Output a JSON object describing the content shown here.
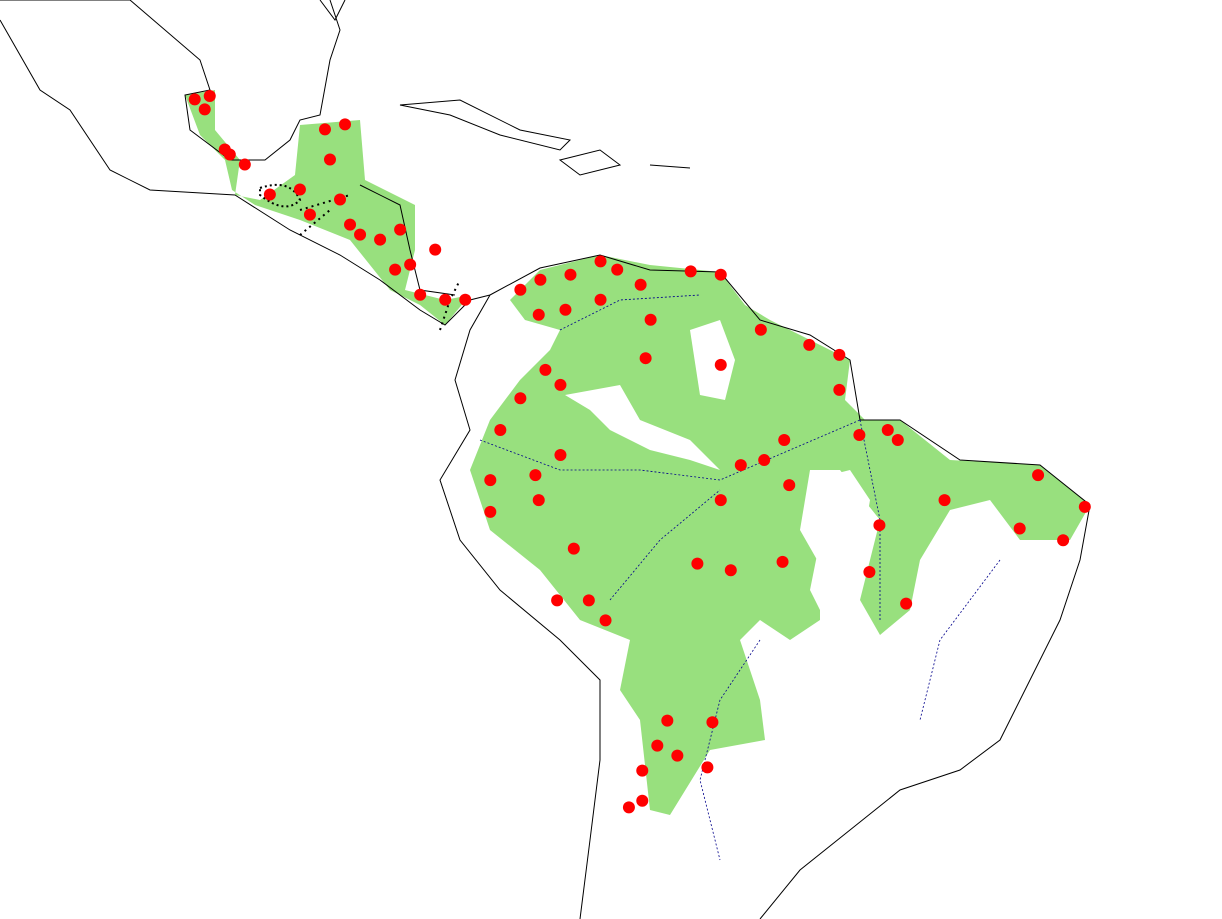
{
  "map": {
    "colors": {
      "background": "#ffffff",
      "coastline": "#000000",
      "rivers": "#00008b",
      "range": "#98e07e",
      "occurrence": "#ff0000",
      "boundary_points": "#000000"
    },
    "occurrences": [
      [
        -88.4,
        19.8
      ],
      [
        -87.8,
        19.2
      ],
      [
        -87.5,
        20.0
      ],
      [
        -86.6,
        16.8
      ],
      [
        -86.3,
        16.5
      ],
      [
        -85.4,
        15.9
      ],
      [
        -80.6,
        18.0
      ],
      [
        -79.4,
        18.3
      ],
      [
        -80.3,
        16.2
      ],
      [
        -82.1,
        14.4
      ],
      [
        -79.7,
        13.8
      ],
      [
        -79.1,
        12.3
      ],
      [
        -77.3,
        11.4
      ],
      [
        -76.1,
        12.0
      ],
      [
        -76.4,
        9.6
      ],
      [
        -74.9,
        8.1
      ],
      [
        -73.4,
        7.8
      ],
      [
        -74.0,
        10.8
      ],
      [
        -83.9,
        14.1
      ],
      [
        -81.5,
        12.9
      ],
      [
        -78.5,
        11.7
      ],
      [
        -75.5,
        9.9
      ],
      [
        -72.2,
        7.8
      ],
      [
        -68.9,
        8.4
      ],
      [
        -67.7,
        9.0
      ],
      [
        -65.9,
        9.3
      ],
      [
        -64.1,
        10.1
      ],
      [
        -61.7,
        8.7
      ],
      [
        -58.7,
        9.5
      ],
      [
        -56.9,
        9.3
      ],
      [
        -63.1,
        9.6
      ],
      [
        -64.1,
        7.8
      ],
      [
        -61.1,
        6.6
      ],
      [
        -66.2,
        7.2
      ],
      [
        -67.8,
        6.9
      ],
      [
        -54.5,
        6.0
      ],
      [
        -51.6,
        5.1
      ],
      [
        -49.8,
        4.5
      ],
      [
        -49.8,
        2.4
      ],
      [
        -56.9,
        3.9
      ],
      [
        -61.4,
        4.3
      ],
      [
        -67.4,
        3.6
      ],
      [
        -66.5,
        2.7
      ],
      [
        -68.9,
        1.9
      ],
      [
        -70.1,
        0.0
      ],
      [
        -70.7,
        -3.0
      ],
      [
        -68.0,
        -2.7
      ],
      [
        -66.5,
        -1.5
      ],
      [
        -67.8,
        -4.2
      ],
      [
        -70.7,
        -4.9
      ],
      [
        -53.1,
        -0.6
      ],
      [
        -54.3,
        -1.8
      ],
      [
        -55.7,
        -2.1
      ],
      [
        -52.8,
        -3.3
      ],
      [
        -56.9,
        -4.2
      ],
      [
        -48.6,
        -0.3
      ],
      [
        -46.9,
        0.0
      ],
      [
        -46.3,
        -0.6
      ],
      [
        -37.9,
        -2.7
      ],
      [
        -43.5,
        -4.2
      ],
      [
        -35.1,
        -4.6
      ],
      [
        -39.0,
        -5.9
      ],
      [
        -36.4,
        -6.6
      ],
      [
        -47.4,
        -5.7
      ],
      [
        -48.0,
        -8.5
      ],
      [
        -45.8,
        -10.4
      ],
      [
        -53.2,
        -7.9
      ],
      [
        -56.3,
        -8.4
      ],
      [
        -58.3,
        -8.0
      ],
      [
        -65.7,
        -7.1
      ],
      [
        -66.7,
        -10.2
      ],
      [
        -64.8,
        -10.2
      ],
      [
        -63.8,
        -11.4
      ],
      [
        -60.1,
        -17.4
      ],
      [
        -57.4,
        -17.5
      ],
      [
        -60.7,
        -18.9
      ],
      [
        -59.5,
        -19.5
      ],
      [
        -61.6,
        -20.4
      ],
      [
        -57.7,
        -20.2
      ],
      [
        -61.6,
        -22.2
      ],
      [
        -62.4,
        -22.6
      ]
    ]
  }
}
